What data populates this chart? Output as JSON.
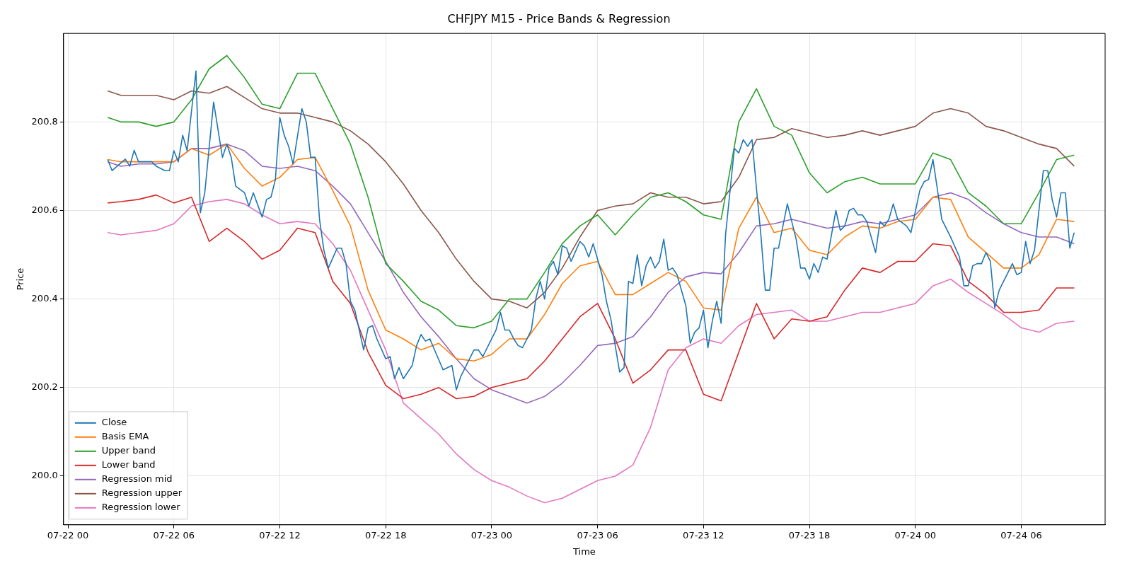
{
  "chart_data": {
    "type": "line",
    "title": "CHFJPY M15 - Price Bands & Regression",
    "xlabel": "Time",
    "ylabel": "Price",
    "xlim": [
      "--07-21T23:45",
      "--07-24T10:45"
    ],
    "xticks": [
      {
        "value": "--07-22T00:00",
        "label": "07-22 00"
      },
      {
        "value": "--07-22T06:00",
        "label": "07-22 06"
      },
      {
        "value": "--07-22T12:00",
        "label": "07-22 12"
      },
      {
        "value": "--07-22T18:00",
        "label": "07-22 18"
      },
      {
        "value": "--07-23T00:00",
        "label": "07-23 00"
      },
      {
        "value": "--07-23T06:00",
        "label": "07-23 06"
      },
      {
        "value": "--07-23T12:00",
        "label": "07-23 12"
      },
      {
        "value": "--07-23T18:00",
        "label": "07-23 18"
      },
      {
        "value": "--07-24T00:00",
        "label": "07-24 00"
      },
      {
        "value": "--07-24T06:00",
        "label": "07-24 06"
      }
    ],
    "ylim": [
      199.89,
      201.0
    ],
    "yticks": [
      {
        "value": 200,
        "label": "200.0"
      },
      200.2,
      200.4,
      200.6,
      200.8
    ],
    "grid": true,
    "legend": "bottom left",
    "line_style": "solid",
    "x": [
      "--07-22T02:15",
      "--07-22T03:00",
      "--07-22T04:00",
      "--07-22T05:00",
      "--07-22T06:00",
      "--07-22T07:00",
      "--07-22T08:00",
      "--07-22T09:00",
      "--07-22T10:00",
      "--07-22T11:00",
      "--07-22T12:00",
      "--07-22T13:00",
      "--07-22T14:00",
      "--07-22T15:00",
      "--07-22T16:00",
      "--07-22T17:00",
      "--07-22T18:00",
      "--07-22T19:00",
      "--07-22T20:00",
      "--07-22T21:00",
      "--07-22T22:00",
      "--07-22T23:00",
      "--07-23T00:00",
      "--07-23T01:00",
      "--07-23T02:00",
      "--07-23T03:00",
      "--07-23T04:00",
      "--07-23T05:00",
      "--07-23T06:00",
      "--07-23T07:00",
      "--07-23T08:00",
      "--07-23T09:00",
      "--07-23T10:00",
      "--07-23T11:00",
      "--07-23T12:00",
      "--07-23T13:00",
      "--07-23T14:00",
      "--07-23T15:00",
      "--07-23T16:00",
      "--07-23T17:00",
      "--07-23T18:00",
      "--07-23T19:00",
      "--07-23T20:00",
      "--07-23T21:00",
      "--07-23T22:00",
      "--07-23T23:00",
      "--07-24T00:00",
      "--07-24T01:00",
      "--07-24T02:00",
      "--07-24T03:00",
      "--07-24T04:00",
      "--07-24T05:00",
      "--07-24T06:00",
      "--07-24T07:00",
      "--07-24T08:00",
      "--07-24T09:00"
    ],
    "series": [
      {
        "name": "Close",
        "color": "#1f77b4",
        "x": [
          "--07-22T02:15",
          "--07-22T02:30",
          "--07-22T03:15",
          "--07-22T03:30",
          "--07-22T03:45",
          "--07-22T04:00",
          "--07-22T04:45",
          "--07-22T05:00",
          "--07-22T05:30",
          "--07-22T05:45",
          "--07-22T06:00",
          "--07-22T06:15",
          "--07-22T06:30",
          "--07-22T06:45",
          "--07-22T07:15",
          "--07-22T07:30",
          "--07-22T07:45",
          "--07-22T08:15",
          "--07-22T08:45",
          "--07-22T09:00",
          "--07-22T09:15",
          "--07-22T09:30",
          "--07-22T10:00",
          "--07-22T10:15",
          "--07-22T10:30",
          "--07-22T11:00",
          "--07-22T11:15",
          "--07-22T11:30",
          "--07-22T11:45",
          "--07-22T12:00",
          "--07-22T12:15",
          "--07-22T12:30",
          "--07-22T12:45",
          "--07-22T13:15",
          "--07-22T13:30",
          "--07-22T13:45",
          "--07-22T14:00",
          "--07-22T14:15",
          "--07-22T14:30",
          "--07-22T14:45",
          "--07-22T15:15",
          "--07-22T15:30",
          "--07-22T15:45",
          "--07-22T16:00",
          "--07-22T16:15",
          "--07-22T16:45",
          "--07-22T17:00",
          "--07-22T17:15",
          "--07-22T17:30",
          "--07-22T18:00",
          "--07-22T18:15",
          "--07-22T18:30",
          "--07-22T18:45",
          "--07-22T19:00",
          "--07-22T19:30",
          "--07-22T19:45",
          "--07-22T20:00",
          "--07-22T20:15",
          "--07-22T20:30",
          "--07-22T21:15",
          "--07-22T21:45",
          "--07-22T22:00",
          "--07-22T22:15",
          "--07-22T23:00",
          "--07-22T23:15",
          "--07-22T23:30",
          "--07-23T00:00",
          "--07-23T00:15",
          "--07-23T00:30",
          "--07-23T00:45",
          "--07-23T01:00",
          "--07-23T01:15",
          "--07-23T01:30",
          "--07-23T01:45",
          "--07-23T02:15",
          "--07-23T02:30",
          "--07-23T02:45",
          "--07-23T03:00",
          "--07-23T03:15",
          "--07-23T03:30",
          "--07-23T03:45",
          "--07-23T04:00",
          "--07-23T04:15",
          "--07-23T04:30",
          "--07-23T05:00",
          "--07-23T05:15",
          "--07-23T05:30",
          "--07-23T05:45",
          "--07-23T06:15",
          "--07-23T06:30",
          "--07-23T06:45",
          "--07-23T07:15",
          "--07-23T07:30",
          "--07-23T07:45",
          "--07-23T08:00",
          "--07-23T08:15",
          "--07-23T08:30",
          "--07-23T08:45",
          "--07-23T09:00",
          "--07-23T09:15",
          "--07-23T09:30",
          "--07-23T09:45",
          "--07-23T10:00",
          "--07-23T10:15",
          "--07-23T10:30",
          "--07-23T11:00",
          "--07-23T11:15",
          "--07-23T11:30",
          "--07-23T11:45",
          "--07-23T12:00",
          "--07-23T12:15",
          "--07-23T12:30",
          "--07-23T12:45",
          "--07-23T13:00",
          "--07-23T13:15",
          "--07-23T13:45",
          "--07-23T14:00",
          "--07-23T14:15",
          "--07-23T14:30",
          "--07-23T14:45",
          "--07-23T15:00",
          "--07-23T15:15",
          "--07-23T15:30",
          "--07-23T15:45",
          "--07-23T16:00",
          "--07-23T16:15",
          "--07-23T16:45",
          "--07-23T17:15",
          "--07-23T17:30",
          "--07-23T17:45",
          "--07-23T18:00",
          "--07-23T18:15",
          "--07-23T18:30",
          "--07-23T18:45",
          "--07-23T19:00",
          "--07-23T19:30",
          "--07-23T19:45",
          "--07-23T20:00",
          "--07-23T20:15",
          "--07-23T20:30",
          "--07-23T20:45",
          "--07-23T21:00",
          "--07-23T21:15",
          "--07-23T21:45",
          "--07-23T22:00",
          "--07-23T22:15",
          "--07-23T22:30",
          "--07-23T22:45",
          "--07-23T23:00",
          "--07-23T23:30",
          "--07-23T23:45",
          "--07-24T00:15",
          "--07-24T00:30",
          "--07-24T00:45",
          "--07-24T01:00",
          "--07-24T01:30",
          "--07-24T01:45",
          "--07-24T02:00",
          "--07-24T02:30",
          "--07-24T02:45",
          "--07-24T03:00",
          "--07-24T03:15",
          "--07-24T03:30",
          "--07-24T03:45",
          "--07-24T04:00",
          "--07-24T04:15",
          "--07-24T04:30",
          "--07-24T04:45",
          "--07-24T05:30",
          "--07-24T05:45",
          "--07-24T06:00",
          "--07-24T06:15",
          "--07-24T06:30",
          "--07-24T06:45",
          "--07-24T07:15",
          "--07-24T07:30",
          "--07-24T07:45",
          "--07-24T08:00",
          "--07-24T08:15",
          "--07-24T08:30",
          "--07-24T08:45",
          "--07-24T09:00"
        ],
        "values": [
          200.715,
          200.69,
          200.716,
          200.7,
          200.736,
          200.71,
          200.71,
          200.7,
          200.69,
          200.69,
          200.735,
          200.71,
          200.77,
          200.735,
          200.915,
          200.595,
          200.64,
          200.845,
          200.72,
          200.75,
          200.72,
          200.655,
          200.64,
          200.61,
          200.64,
          200.585,
          200.625,
          200.63,
          200.67,
          200.81,
          200.77,
          200.745,
          200.705,
          200.83,
          200.8,
          200.72,
          200.72,
          200.58,
          200.51,
          200.47,
          200.515,
          200.515,
          200.48,
          200.395,
          200.375,
          200.285,
          200.335,
          200.34,
          200.31,
          200.265,
          200.27,
          200.22,
          200.245,
          200.22,
          200.25,
          200.295,
          200.32,
          200.305,
          200.31,
          200.24,
          200.25,
          200.195,
          200.225,
          200.285,
          200.285,
          200.27,
          200.31,
          200.33,
          200.37,
          200.33,
          200.33,
          200.31,
          200.295,
          200.29,
          200.33,
          200.4,
          200.44,
          200.4,
          200.47,
          200.485,
          200.455,
          200.52,
          200.515,
          200.485,
          200.53,
          200.52,
          200.495,
          200.525,
          200.455,
          200.395,
          200.355,
          200.235,
          200.245,
          200.44,
          200.435,
          200.5,
          200.43,
          200.475,
          200.495,
          200.47,
          200.485,
          200.535,
          200.465,
          200.47,
          200.455,
          200.385,
          200.3,
          200.325,
          200.335,
          200.375,
          200.29,
          200.35,
          200.395,
          200.345,
          200.545,
          200.74,
          200.73,
          200.76,
          200.745,
          200.76,
          200.65,
          200.545,
          200.42,
          200.42,
          200.515,
          200.515,
          200.615,
          200.535,
          200.47,
          200.47,
          200.445,
          200.48,
          200.46,
          200.495,
          200.49,
          200.6,
          200.555,
          200.565,
          200.6,
          200.605,
          200.59,
          200.59,
          200.575,
          200.505,
          200.575,
          200.565,
          200.58,
          200.615,
          200.58,
          200.565,
          200.55,
          200.645,
          200.665,
          200.67,
          200.715,
          200.58,
          200.56,
          200.54,
          200.495,
          200.43,
          200.43,
          200.475,
          200.48,
          200.48,
          200.505,
          200.485,
          200.38,
          200.42,
          200.48,
          200.455,
          200.46,
          200.53,
          200.48,
          200.51,
          200.69,
          200.69,
          200.625,
          200.585,
          200.64,
          200.64,
          200.515,
          200.55
        ]
      },
      {
        "name": "Basis EMA",
        "color": "#ff7f0e",
        "values": [
          200.715,
          200.71,
          200.71,
          200.71,
          200.71,
          200.74,
          200.725,
          200.75,
          200.695,
          200.655,
          200.675,
          200.715,
          200.72,
          200.645,
          200.565,
          200.42,
          200.33,
          200.31,
          200.285,
          200.3,
          200.265,
          200.26,
          200.275,
          200.31,
          200.31,
          200.365,
          200.435,
          200.475,
          200.485,
          200.41,
          200.41,
          200.435,
          200.46,
          200.44,
          200.38,
          200.375,
          200.56,
          200.63,
          200.55,
          200.56,
          200.51,
          200.5,
          200.54,
          200.565,
          200.56,
          200.575,
          200.58,
          200.63,
          200.625,
          200.54,
          200.505,
          200.47,
          200.47,
          200.5,
          200.58,
          200.575
        ]
      },
      {
        "name": "Upper band",
        "color": "#2ca02c",
        "values": [
          200.81,
          200.8,
          200.8,
          200.79,
          200.8,
          200.85,
          200.92,
          200.95,
          200.9,
          200.84,
          200.83,
          200.91,
          200.91,
          200.83,
          200.75,
          200.63,
          200.48,
          200.44,
          200.395,
          200.375,
          200.34,
          200.335,
          200.35,
          200.4,
          200.4,
          200.46,
          200.525,
          200.565,
          200.59,
          200.545,
          200.59,
          200.63,
          200.64,
          200.62,
          200.59,
          200.58,
          200.8,
          200.875,
          200.79,
          200.77,
          200.685,
          200.64,
          200.665,
          200.675,
          200.66,
          200.66,
          200.66,
          200.73,
          200.715,
          200.64,
          200.61,
          200.57,
          200.57,
          200.64,
          200.715,
          200.725
        ]
      },
      {
        "name": "Lower band",
        "color": "#d62728",
        "values": [
          200.617,
          200.62,
          200.625,
          200.635,
          200.617,
          200.63,
          200.53,
          200.56,
          200.53,
          200.49,
          200.51,
          200.56,
          200.55,
          200.44,
          200.39,
          200.28,
          200.205,
          200.175,
          200.185,
          200.2,
          200.175,
          200.18,
          200.2,
          200.21,
          200.22,
          200.26,
          200.31,
          200.36,
          200.39,
          200.31,
          200.21,
          200.24,
          200.285,
          200.285,
          200.185,
          200.17,
          200.28,
          200.39,
          200.31,
          200.355,
          200.35,
          200.36,
          200.42,
          200.47,
          200.46,
          200.485,
          200.485,
          200.525,
          200.52,
          200.44,
          200.41,
          200.37,
          200.37,
          200.375,
          200.425,
          200.425
        ]
      },
      {
        "name": "Regression mid",
        "color": "#9467bd",
        "values": [
          200.71,
          200.7,
          200.705,
          200.705,
          200.71,
          200.74,
          200.74,
          200.75,
          200.735,
          200.7,
          200.695,
          200.7,
          200.69,
          200.655,
          200.615,
          200.55,
          200.485,
          200.415,
          200.36,
          200.315,
          200.265,
          200.22,
          200.195,
          200.18,
          200.165,
          200.18,
          200.21,
          200.25,
          200.295,
          200.3,
          200.315,
          200.36,
          200.415,
          200.45,
          200.46,
          200.457,
          200.505,
          200.565,
          200.57,
          200.58,
          200.57,
          200.56,
          200.565,
          200.575,
          200.57,
          200.58,
          200.59,
          200.63,
          200.64,
          200.625,
          200.595,
          200.57,
          200.55,
          200.54,
          200.54,
          200.525
        ]
      },
      {
        "name": "Regression upper",
        "color": "#8c564b",
        "values": [
          200.87,
          200.86,
          200.86,
          200.86,
          200.85,
          200.87,
          200.865,
          200.88,
          200.855,
          200.83,
          200.82,
          200.82,
          200.81,
          200.8,
          200.78,
          200.75,
          200.71,
          200.66,
          200.6,
          200.55,
          200.49,
          200.44,
          200.4,
          200.395,
          200.38,
          200.415,
          200.47,
          200.54,
          200.6,
          200.61,
          200.615,
          200.64,
          200.63,
          200.63,
          200.615,
          200.62,
          200.675,
          200.76,
          200.765,
          200.785,
          200.775,
          200.765,
          200.77,
          200.78,
          200.77,
          200.78,
          200.79,
          200.82,
          200.83,
          200.82,
          200.79,
          200.78,
          200.765,
          200.75,
          200.74,
          200.7
        ]
      },
      {
        "name": "Regression lower",
        "color": "#e377c2",
        "values": [
          200.55,
          200.545,
          200.55,
          200.555,
          200.57,
          200.61,
          200.62,
          200.625,
          200.615,
          200.59,
          200.57,
          200.575,
          200.57,
          200.525,
          200.465,
          200.375,
          200.285,
          200.165,
          200.13,
          200.095,
          200.05,
          200.015,
          199.99,
          199.975,
          199.955,
          199.94,
          199.95,
          199.97,
          199.99,
          200.0,
          200.025,
          200.11,
          200.24,
          200.29,
          200.31,
          200.3,
          200.34,
          200.365,
          200.37,
          200.375,
          200.35,
          200.35,
          200.36,
          200.37,
          200.37,
          200.38,
          200.39,
          200.43,
          200.445,
          200.415,
          200.39,
          200.365,
          200.335,
          200.325,
          200.345,
          200.35
        ]
      }
    ]
  }
}
